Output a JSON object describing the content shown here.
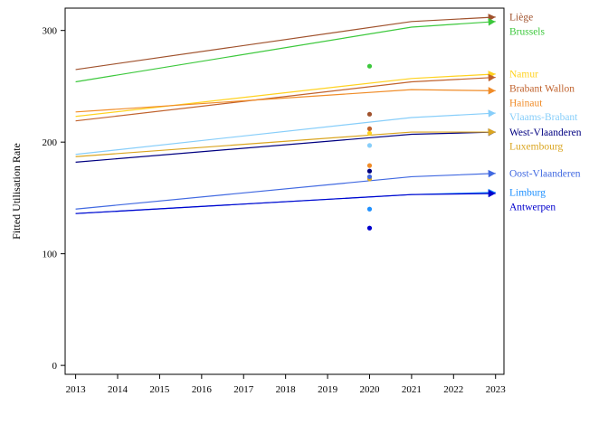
{
  "chart_data": {
    "type": "line",
    "title": "",
    "xlabel": "",
    "ylabel": "Fitted Utilisation Rate",
    "x_ticks": [
      2013,
      2014,
      2015,
      2016,
      2017,
      2018,
      2019,
      2020,
      2021,
      2022,
      2023
    ],
    "y_ticks": [
      0,
      100,
      200,
      300
    ],
    "xlim": [
      2012.75,
      2023.2
    ],
    "ylim": [
      -8,
      320
    ],
    "grid": false,
    "legend": "direct labels at right end of lines",
    "x": [
      2013,
      2021,
      2023
    ],
    "series": [
      {
        "name": "Liège",
        "color": "#a0522d",
        "values": [
          265,
          308,
          312
        ],
        "point_2020": 225
      },
      {
        "name": "Brussels",
        "color": "#3cc83c",
        "values": [
          254,
          303,
          308
        ],
        "point_2020": 268
      },
      {
        "name": "Namur",
        "color": "#ffd21f",
        "values": [
          223,
          257,
          261
        ],
        "point_2020": 208
      },
      {
        "name": "Brabant Wallon",
        "color": "#c0622d",
        "values": [
          219,
          254,
          258
        ],
        "point_2020": 212
      },
      {
        "name": "Hainaut",
        "color": "#f08c28",
        "values": [
          227,
          247,
          246
        ],
        "point_2020": 179
      },
      {
        "name": "Vlaams-Brabant",
        "color": "#87cefa",
        "values": [
          189,
          222,
          226
        ],
        "point_2020": 197
      },
      {
        "name": "West-Vlaanderen",
        "color": "#000080",
        "values": [
          182,
          207,
          209
        ],
        "point_2020": 174
      },
      {
        "name": "Luxembourg",
        "color": "#daa520",
        "values": [
          187,
          209,
          209
        ],
        "point_2020": 167
      },
      {
        "name": "Oost-Vlaanderen",
        "color": "#4169e1",
        "values": [
          140,
          169,
          172
        ],
        "point_2020": 169
      },
      {
        "name": "Limburg",
        "color": "#1e90ff",
        "values": [
          136,
          153,
          155
        ],
        "point_2020": 140
      },
      {
        "name": "Antwerpen",
        "color": "#0000cd",
        "values": [
          136,
          153,
          154
        ],
        "point_2020": 123
      }
    ],
    "label_order": [
      "Liège",
      "Brussels",
      "Namur",
      "Brabant Wallon",
      "Hainaut",
      "Vlaams-Brabant",
      "West-Vlaanderen",
      "Luxembourg",
      "Oost-Vlaanderen",
      "Limburg",
      "Antwerpen"
    ]
  }
}
